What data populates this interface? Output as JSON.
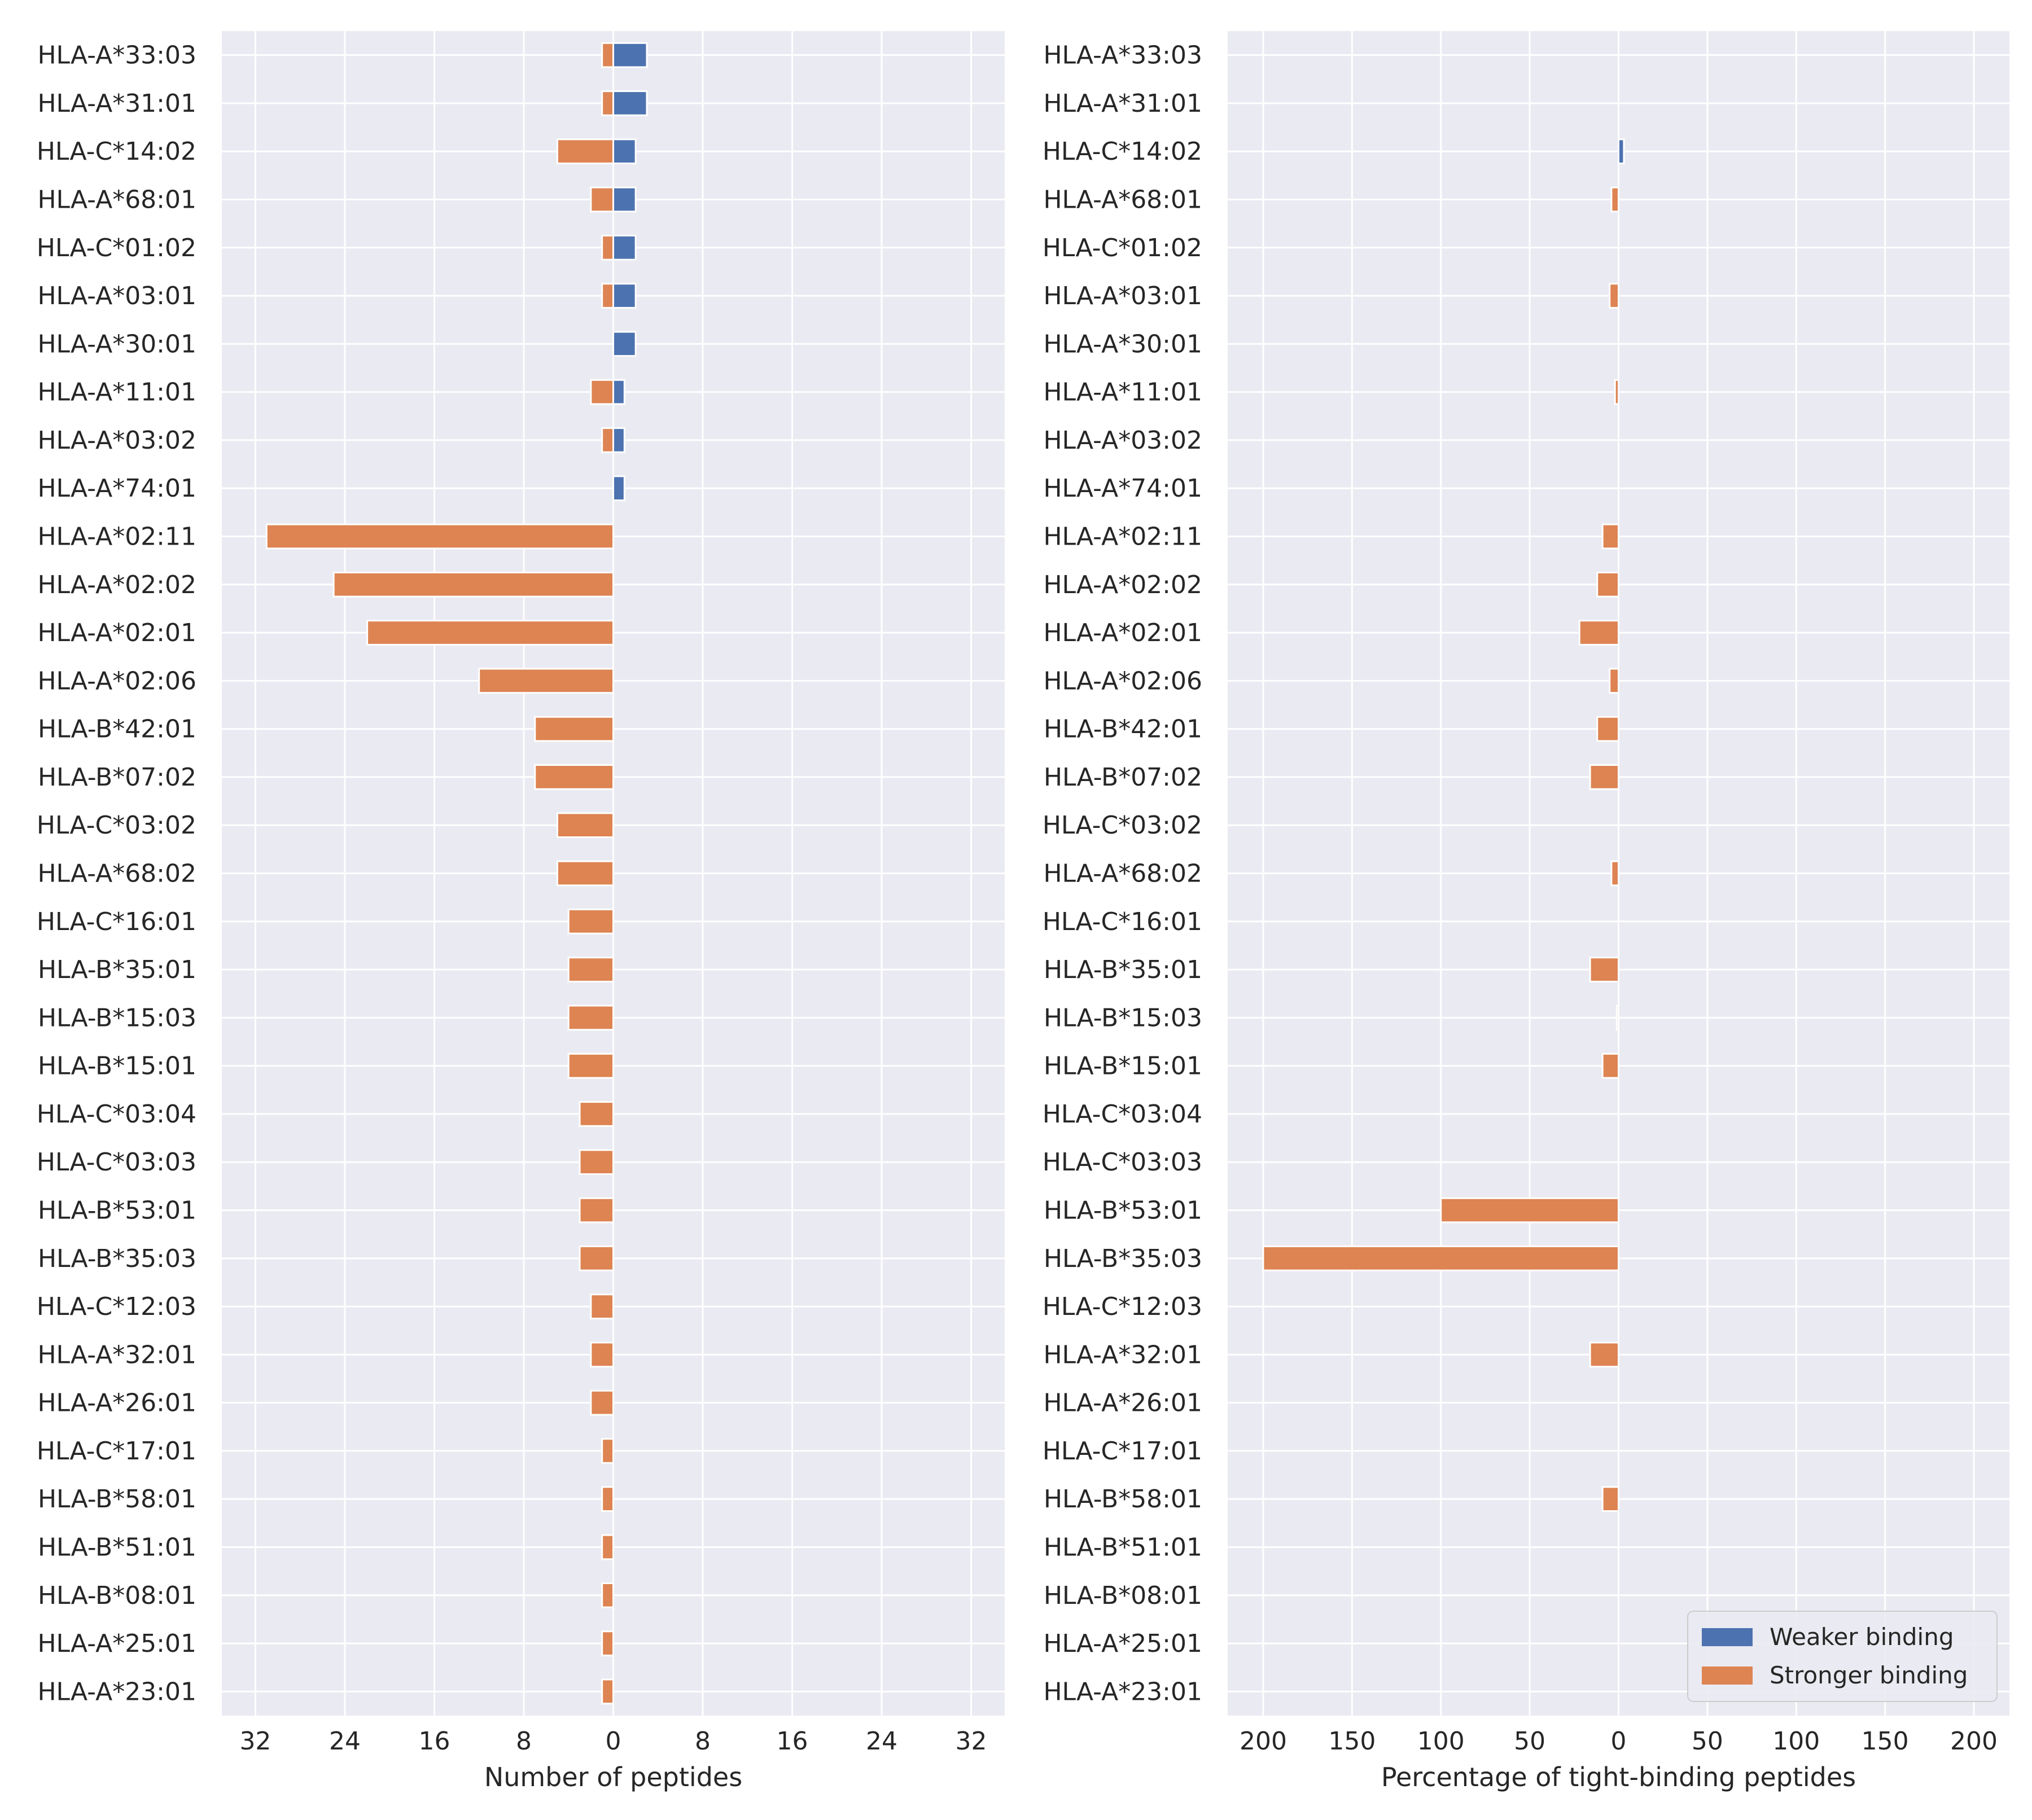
{
  "chart_data": [
    {
      "type": "bar",
      "orientation": "horizontal-diverging",
      "xlabel": "Number of peptides",
      "xlim": [
        -35,
        35
      ],
      "xticks": [
        -32,
        -24,
        -16,
        -8,
        0,
        8,
        16,
        24,
        32
      ],
      "xtick_labels": [
        "32",
        "24",
        "16",
        "8",
        "0",
        "8",
        "16",
        "24",
        "32"
      ],
      "grid": true,
      "categories": [
        "HLA-A*33:03",
        "HLA-A*31:01",
        "HLA-C*14:02",
        "HLA-A*68:01",
        "HLA-C*01:02",
        "HLA-A*03:01",
        "HLA-A*30:01",
        "HLA-A*11:01",
        "HLA-A*03:02",
        "HLA-A*74:01",
        "HLA-A*02:11",
        "HLA-A*02:02",
        "HLA-A*02:01",
        "HLA-A*02:06",
        "HLA-B*42:01",
        "HLA-B*07:02",
        "HLA-C*03:02",
        "HLA-A*68:02",
        "HLA-C*16:01",
        "HLA-B*35:01",
        "HLA-B*15:03",
        "HLA-B*15:01",
        "HLA-C*03:04",
        "HLA-C*03:03",
        "HLA-B*53:01",
        "HLA-B*35:03",
        "HLA-C*12:03",
        "HLA-A*32:01",
        "HLA-A*26:01",
        "HLA-C*17:01",
        "HLA-B*58:01",
        "HLA-B*51:01",
        "HLA-B*08:01",
        "HLA-A*25:01",
        "HLA-A*23:01"
      ],
      "series": [
        {
          "name": "Weaker binding",
          "color": "#4c72b0",
          "direction": "right",
          "values": [
            3,
            3,
            2,
            2,
            2,
            2,
            2,
            1,
            1,
            1,
            0,
            0,
            0,
            0,
            0,
            0,
            0,
            0,
            0,
            0,
            0,
            0,
            0,
            0,
            0,
            0,
            0,
            0,
            0,
            0,
            0,
            0,
            0,
            0,
            0
          ]
        },
        {
          "name": "Stronger binding",
          "color": "#dd8452",
          "direction": "left",
          "values": [
            1,
            1,
            5,
            2,
            1,
            1,
            0,
            2,
            1,
            0,
            31,
            25,
            22,
            12,
            7,
            7,
            5,
            5,
            4,
            4,
            4,
            4,
            3,
            3,
            3,
            3,
            2,
            2,
            2,
            1,
            1,
            1,
            1,
            1,
            1
          ]
        }
      ]
    },
    {
      "type": "bar",
      "orientation": "horizontal-diverging",
      "xlabel": "Percentage of tight-binding peptides",
      "xlim": [
        -220,
        220
      ],
      "xticks": [
        -200,
        -150,
        -100,
        -50,
        0,
        50,
        100,
        150,
        200
      ],
      "xtick_labels": [
        "200",
        "150",
        "100",
        "50",
        "0",
        "50",
        "100",
        "150",
        "200"
      ],
      "grid": true,
      "legend_position": "lower-right",
      "categories": [
        "HLA-A*33:03",
        "HLA-A*31:01",
        "HLA-C*14:02",
        "HLA-A*68:01",
        "HLA-C*01:02",
        "HLA-A*03:01",
        "HLA-A*30:01",
        "HLA-A*11:01",
        "HLA-A*03:02",
        "HLA-A*74:01",
        "HLA-A*02:11",
        "HLA-A*02:02",
        "HLA-A*02:01",
        "HLA-A*02:06",
        "HLA-B*42:01",
        "HLA-B*07:02",
        "HLA-C*03:02",
        "HLA-A*68:02",
        "HLA-C*16:01",
        "HLA-B*35:01",
        "HLA-B*15:03",
        "HLA-B*15:01",
        "HLA-C*03:04",
        "HLA-C*03:03",
        "HLA-B*53:01",
        "HLA-B*35:03",
        "HLA-C*12:03",
        "HLA-A*32:01",
        "HLA-A*26:01",
        "HLA-C*17:01",
        "HLA-B*58:01",
        "HLA-B*51:01",
        "HLA-B*08:01",
        "HLA-A*25:01",
        "HLA-A*23:01"
      ],
      "series": [
        {
          "name": "Weaker binding",
          "color": "#4c72b0",
          "direction": "right",
          "values": [
            0,
            0,
            3,
            0,
            0,
            0,
            0,
            0,
            0,
            0,
            0,
            0,
            0,
            0,
            0,
            0,
            0,
            0,
            0,
            0,
            0,
            0,
            0,
            0,
            0,
            0,
            0,
            0,
            0,
            0,
            0,
            0,
            0,
            0,
            0
          ]
        },
        {
          "name": "Stronger binding",
          "color": "#dd8452",
          "direction": "left",
          "values": [
            0,
            0,
            0,
            4,
            0,
            5,
            0,
            2,
            0,
            0,
            9,
            12,
            22,
            5,
            12,
            16,
            0,
            4,
            0,
            16,
            1,
            9,
            0,
            0,
            100,
            200,
            0,
            16,
            0,
            0,
            9,
            0,
            0,
            0,
            0
          ]
        }
      ]
    }
  ],
  "legend": {
    "items": [
      {
        "label": "Weaker binding",
        "color": "#4c72b0"
      },
      {
        "label": "Stronger binding",
        "color": "#dd8452"
      }
    ]
  }
}
